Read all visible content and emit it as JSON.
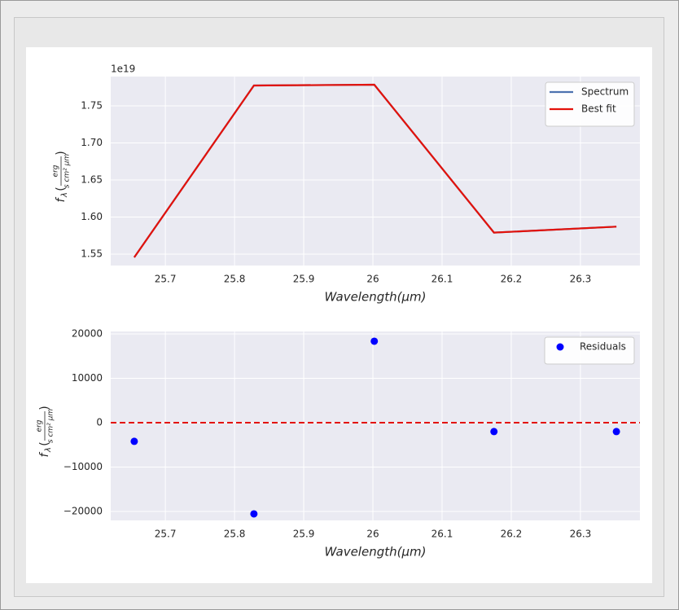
{
  "chart_data": [
    {
      "type": "line",
      "offset_label": "1e19",
      "x": [
        25.655,
        25.828,
        26.002,
        26.175,
        26.352
      ],
      "series": [
        {
          "name": "Spectrum",
          "color": "#4c72b0",
          "values": [
            1.5456,
            1.7775,
            1.7786,
            1.579,
            1.587
          ]
        },
        {
          "name": "Best fit",
          "color": "#e3120b",
          "values": [
            1.5456,
            1.7775,
            1.7786,
            1.579,
            1.587
          ]
        }
      ],
      "xlim": [
        25.621,
        26.386
      ],
      "xticks": [
        25.7,
        25.8,
        25.9,
        26.0,
        26.1,
        26.2,
        26.3
      ],
      "ylim": [
        1.5346,
        1.7896
      ],
      "yticks": [
        1.55,
        {
          "value": 1.6,
          "label": "1.60"
        },
        1.65,
        {
          "value": 1.7,
          "label": "1.70"
        },
        1.75
      ],
      "xlabel": "Wavelength(μm)",
      "ylabel": [
        "f",
        "λ",
        "(",
        "erg",
        "s cm² μm",
        ")"
      ],
      "grid": true,
      "legend": "upper right"
    },
    {
      "type": "scatter",
      "x": [
        25.655,
        25.828,
        26.002,
        26.175,
        26.352
      ],
      "series": [
        {
          "name": "Residuals",
          "color": "#0000ff",
          "values": [
            -4200,
            -20550,
            18350,
            -2000,
            -2000
          ]
        }
      ],
      "hline": 0,
      "hline_color": "#e3120b",
      "xlim": [
        25.621,
        26.386
      ],
      "xticks": [
        25.7,
        25.8,
        25.9,
        26.0,
        26.1,
        26.2,
        26.3
      ],
      "ylim": [
        -22020,
        20550
      ],
      "yticks": [
        {
          "value": -20000,
          "label": "−20000"
        },
        {
          "value": -10000,
          "label": "−10000"
        },
        0,
        10000,
        20000
      ],
      "xlabel": "Wavelength(μm)",
      "ylabel": [
        "f",
        "λ",
        "(",
        "erg",
        "s cm² μm",
        ")"
      ],
      "grid": true,
      "legend": "upper right"
    }
  ]
}
